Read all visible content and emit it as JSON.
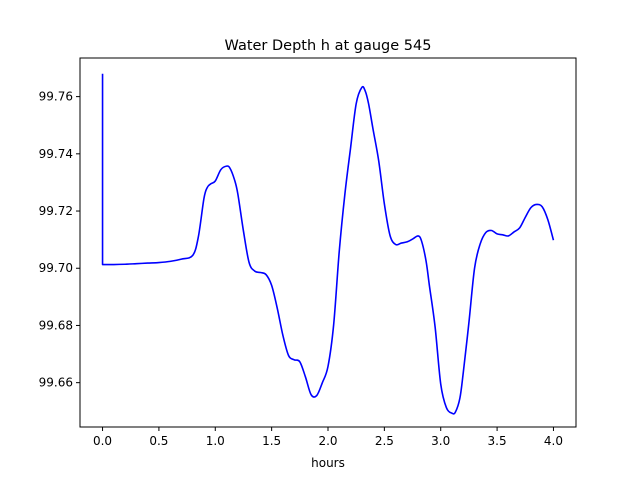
{
  "chart_data": {
    "type": "line",
    "title": "Water Depth h at gauge 545",
    "xlabel": "hours",
    "ylabel": "",
    "xlim": [
      -0.2,
      4.2
    ],
    "ylim": [
      99.6445,
      99.7735
    ],
    "xticks": [
      0.0,
      0.5,
      1.0,
      1.5,
      2.0,
      2.5,
      3.0,
      3.5,
      4.0
    ],
    "xtick_labels": [
      "0.0",
      "0.5",
      "1.0",
      "1.5",
      "2.0",
      "2.5",
      "3.0",
      "3.5",
      "4.0"
    ],
    "yticks": [
      99.66,
      99.68,
      99.7,
      99.72,
      99.74,
      99.76
    ],
    "ytick_labels": [
      "99.66",
      "99.68",
      "99.70",
      "99.72",
      "99.74",
      "99.76"
    ],
    "grid": false,
    "series": [
      {
        "color": "#0000ff",
        "x": [
          0.0,
          0.0,
          0.1,
          0.2,
          0.3,
          0.4,
          0.5,
          0.6,
          0.7,
          0.8,
          0.85,
          0.9,
          0.93,
          0.96,
          1.0,
          1.05,
          1.1,
          1.13,
          1.17,
          1.2,
          1.25,
          1.3,
          1.35,
          1.4,
          1.45,
          1.5,
          1.55,
          1.6,
          1.65,
          1.7,
          1.75,
          1.8,
          1.85,
          1.9,
          1.95,
          2.0,
          2.05,
          2.1,
          2.15,
          2.2,
          2.25,
          2.3,
          2.33,
          2.36,
          2.4,
          2.45,
          2.5,
          2.55,
          2.6,
          2.65,
          2.7,
          2.75,
          2.8,
          2.83,
          2.87,
          2.9,
          2.95,
          3.0,
          3.05,
          3.1,
          3.13,
          3.17,
          3.2,
          3.25,
          3.3,
          3.35,
          3.4,
          3.45,
          3.5,
          3.55,
          3.6,
          3.65,
          3.7,
          3.75,
          3.8,
          3.85,
          3.9,
          3.95,
          4.0
        ],
        "y": [
          99.768,
          99.7013,
          99.7013,
          99.7014,
          99.7016,
          99.7018,
          99.702,
          99.7024,
          99.7032,
          99.7045,
          99.711,
          99.7245,
          99.7283,
          99.7295,
          99.7305,
          99.7345,
          99.7357,
          99.735,
          99.731,
          99.726,
          99.713,
          99.702,
          99.699,
          99.6985,
          99.6978,
          99.694,
          99.686,
          99.6765,
          99.6695,
          99.668,
          99.6673,
          99.662,
          99.6558,
          99.6555,
          99.66,
          99.6657,
          99.6802,
          99.706,
          99.726,
          99.742,
          99.7575,
          99.7632,
          99.762,
          99.7575,
          99.7485,
          99.7375,
          99.7225,
          99.7115,
          99.7083,
          99.7088,
          99.7092,
          99.7102,
          99.7113,
          99.7095,
          99.7025,
          99.6938,
          99.6795,
          99.6595,
          99.6513,
          99.6493,
          99.6497,
          99.6546,
          99.6635,
          99.681,
          99.7,
          99.7085,
          99.7125,
          99.7132,
          99.712,
          99.7117,
          99.7113,
          99.7127,
          99.7141,
          99.7178,
          99.7212,
          99.7223,
          99.7215,
          99.717,
          99.7098
        ]
      }
    ]
  }
}
